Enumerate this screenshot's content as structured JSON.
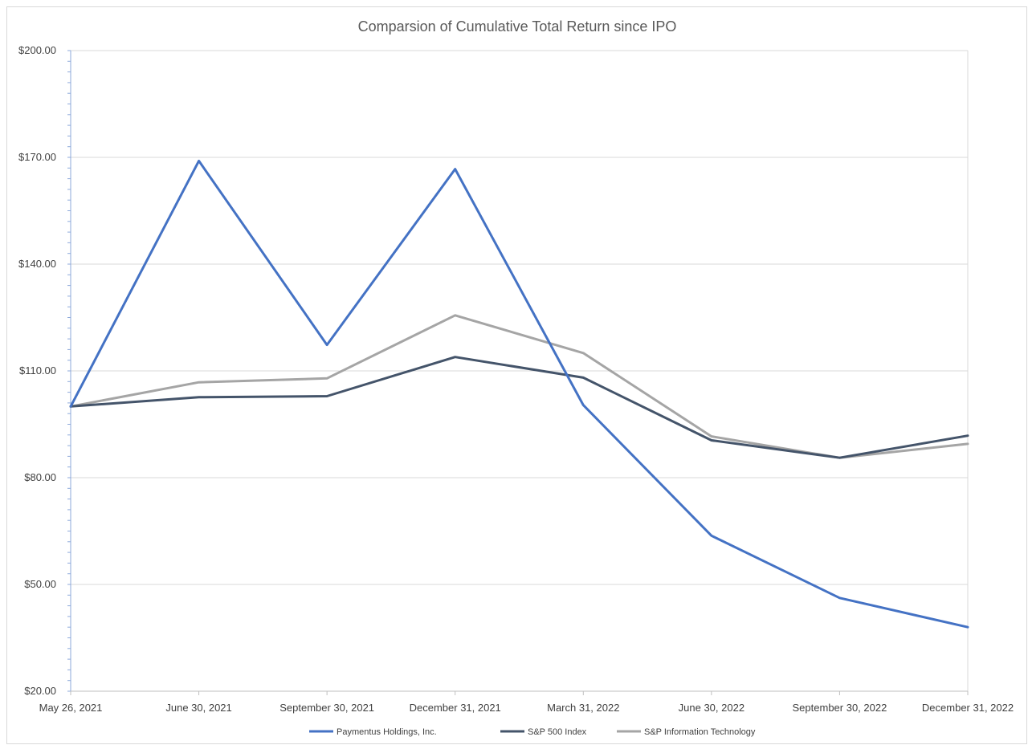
{
  "chart_data": {
    "type": "line",
    "title": "Comparsion of Cumulative Total Return since IPO",
    "xlabel": "",
    "ylabel": "",
    "categories": [
      "May 26, 2021",
      "June 30, 2021",
      "September 30, 2021",
      "December 31, 2021",
      "March 31, 2022",
      "June 30, 2022",
      "September 30, 2022",
      "December 31, 2022"
    ],
    "ylim": [
      20,
      200
    ],
    "yticks": [
      20,
      50,
      80,
      110,
      140,
      170,
      200
    ],
    "ytick_labels": [
      "$20.00",
      "$50.00",
      "$80.00",
      "$110.00",
      "$140.00",
      "$170.00",
      "$200.00"
    ],
    "grid": true,
    "legend_position": "bottom",
    "series": [
      {
        "name": "Paymentus Holdings, Inc.",
        "color": "#4472c4",
        "values": [
          100.0,
          169.0,
          117.3,
          166.7,
          100.4,
          63.7,
          46.2,
          38.0
        ]
      },
      {
        "name": "S&P 500 Index",
        "color": "#44546a",
        "values": [
          100.0,
          102.6,
          102.9,
          113.9,
          108.1,
          90.5,
          85.6,
          91.8
        ]
      },
      {
        "name": "S&P Information Technology",
        "color": "#a5a5a5",
        "values": [
          100.0,
          106.8,
          107.9,
          125.6,
          115.0,
          91.6,
          85.6,
          89.5
        ]
      }
    ]
  }
}
